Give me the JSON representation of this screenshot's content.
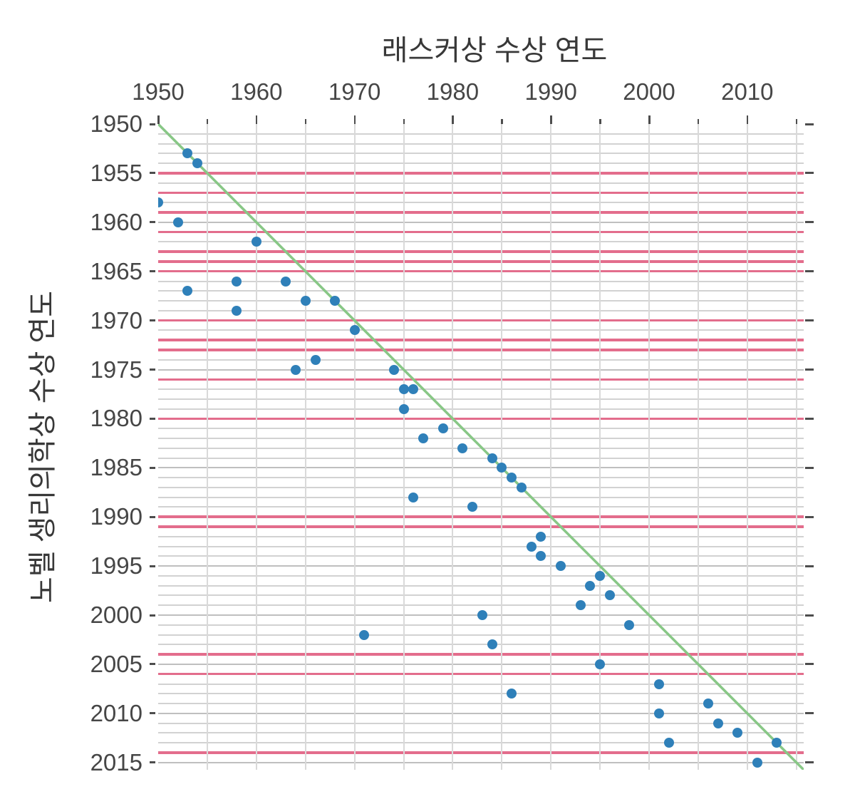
{
  "figure": {
    "title": "래스커상 수상 연도",
    "y_axis_label": "노벨 생리의학상 수상 연도"
  },
  "chart_data": {
    "type": "scatter",
    "title": "래스커상 수상 연도",
    "xlabel": "래스커상 수상 연도",
    "ylabel": "노벨 생리의학상 수상 연도",
    "x_axis": {
      "position": "top",
      "min": 1950,
      "max": 2015.7,
      "labeled_ticks": [
        1950,
        1960,
        1970,
        1980,
        1990,
        2000,
        2010
      ],
      "minor_ticks": [
        1955,
        1965,
        1975,
        1985,
        1995,
        2005,
        2015
      ]
    },
    "y_axis": {
      "position": "left",
      "min": 1950,
      "max": 2015.7,
      "inverted": true,
      "labeled_ticks": [
        1950,
        1955,
        1960,
        1965,
        1970,
        1975,
        1980,
        1985,
        1990,
        1995,
        2000,
        2005,
        2010,
        2015
      ]
    },
    "grid": {
      "horizontal": "every year",
      "vertical": "every 5 years"
    },
    "points_meaning": "x = Lasker Award year, y = Nobel Prize in Physiology or Medicine year",
    "points": [
      [
        1953,
        1953
      ],
      [
        1954,
        1954
      ],
      [
        1950,
        1958
      ],
      [
        1952,
        1960
      ],
      [
        1960,
        1962
      ],
      [
        1958,
        1966
      ],
      [
        1963,
        1966
      ],
      [
        1953,
        1967
      ],
      [
        1965,
        1968
      ],
      [
        1968,
        1968
      ],
      [
        1958,
        1969
      ],
      [
        1970,
        1971
      ],
      [
        1966,
        1974
      ],
      [
        1964,
        1975
      ],
      [
        1974,
        1975
      ],
      [
        1975,
        1977
      ],
      [
        1976,
        1977
      ],
      [
        1975,
        1979
      ],
      [
        1979,
        1981
      ],
      [
        1977,
        1982
      ],
      [
        1981,
        1983
      ],
      [
        1984,
        1984
      ],
      [
        1985,
        1985
      ],
      [
        1986,
        1986
      ],
      [
        1987,
        1987
      ],
      [
        1976,
        1988
      ],
      [
        1982,
        1989
      ],
      [
        1989,
        1992
      ],
      [
        1988,
        1993
      ],
      [
        1989,
        1994
      ],
      [
        1991,
        1995
      ],
      [
        1995,
        1996
      ],
      [
        1994,
        1997
      ],
      [
        1996,
        1998
      ],
      [
        1993,
        1999
      ],
      [
        1983,
        2000
      ],
      [
        1998,
        2001
      ],
      [
        1971,
        2002
      ],
      [
        1984,
        2003
      ],
      [
        1995,
        2005
      ],
      [
        2001,
        2007
      ],
      [
        1986,
        2008
      ],
      [
        2006,
        2009
      ],
      [
        2001,
        2010
      ],
      [
        2007,
        2011
      ],
      [
        2009,
        2012
      ],
      [
        2002,
        2013
      ],
      [
        2013,
        2013
      ],
      [
        2011,
        2015
      ]
    ],
    "identity_line": {
      "from": [
        1950,
        1950
      ],
      "to": [
        2016,
        2016
      ]
    },
    "pink_highlight_years": [
      1955,
      1957,
      1959,
      1961,
      1963,
      1964,
      1965,
      1970,
      1972,
      1973,
      1976,
      1980,
      1990,
      1991,
      2004,
      2006,
      2014
    ],
    "colors": {
      "dot": "#2f80b9",
      "identity_line": "#88c786",
      "pink_line": "#e36d8c",
      "grid_year": "#d2d2d2",
      "grid_5year": "#bfbfbf",
      "grid_vertical": "#d9d9d9",
      "tick_mark": "#4d4d4d",
      "tick_text": "#464646",
      "title_text": "#383838"
    }
  }
}
